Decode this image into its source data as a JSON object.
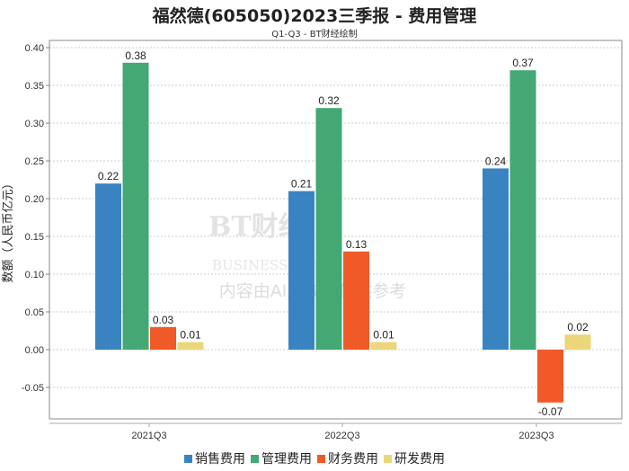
{
  "chart_data": {
    "type": "bar",
    "title": "福然德(605050)2023三季报 - 费用管理",
    "subtitle": "Q1-Q3 - BT财经绘制",
    "xlabel": "",
    "ylabel": "数额（人民币亿元）",
    "ylim": [
      -0.09,
      0.41
    ],
    "yticks": [
      "0.40",
      "0.35",
      "0.30",
      "0.25",
      "0.20",
      "0.15",
      "0.10",
      "0.05",
      "0.00",
      "-0.05"
    ],
    "grid": true,
    "legend_position": "bottom",
    "categories": [
      "2021Q3",
      "2022Q3",
      "2023Q3"
    ],
    "series": [
      {
        "name": "销售费用",
        "color": "#3a83c1",
        "values": [
          0.22,
          0.21,
          0.24
        ],
        "labels": [
          "0.22",
          "0.21",
          "0.24"
        ]
      },
      {
        "name": "管理费用",
        "color": "#43a873",
        "values": [
          0.38,
          0.32,
          0.37
        ],
        "labels": [
          "0.38",
          "0.32",
          "0.37"
        ]
      },
      {
        "name": "财务费用",
        "color": "#f05a28",
        "values": [
          0.03,
          0.13,
          -0.07
        ],
        "labels": [
          "0.03",
          "0.13",
          "-0.07"
        ]
      },
      {
        "name": "研发费用",
        "color": "#ecd67a",
        "values": [
          0.01,
          0.01,
          0.02
        ],
        "labels": [
          "0.01",
          "0.01",
          "0.02"
        ]
      }
    ]
  },
  "watermark": {
    "brand": "BT财经",
    "brand_en": "BUSINESS TIMES",
    "note": "内容由AI生成，仅供参考"
  }
}
